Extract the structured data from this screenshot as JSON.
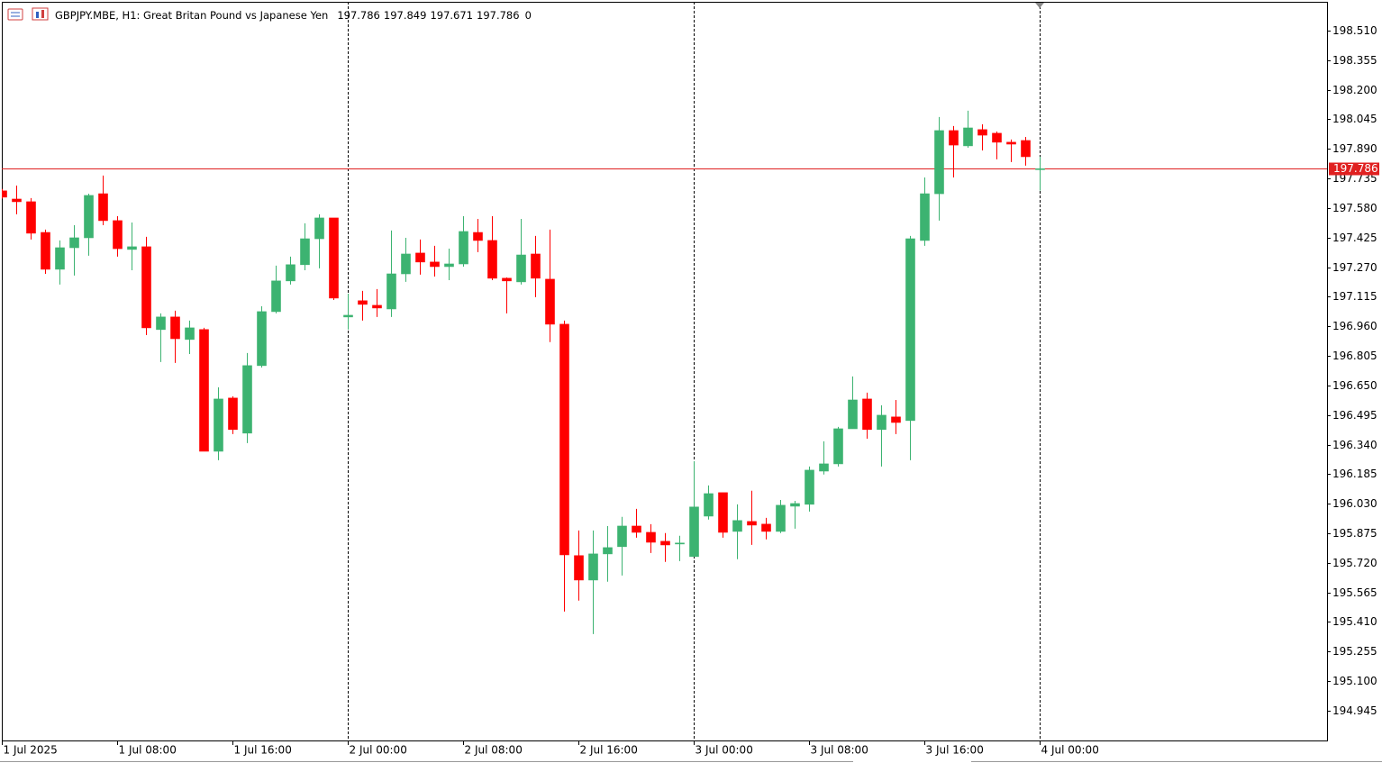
{
  "chart_data": {
    "type": "candlestick",
    "title": "GBPJPY.MBE, H1:  Great Britan Pound vs Japanese Yen",
    "last_volume": 0,
    "categories": [
      "1 Jul 2025",
      null,
      null,
      null,
      null,
      null,
      null,
      null,
      "1 Jul 08:00",
      null,
      null,
      null,
      null,
      null,
      null,
      null,
      "1 Jul 16:00",
      null,
      null,
      null,
      null,
      null,
      null,
      null,
      "2 Jul 00:00",
      null,
      null,
      null,
      null,
      null,
      null,
      null,
      "2 Jul 08:00",
      null,
      null,
      null,
      null,
      null,
      null,
      null,
      "2 Jul 16:00",
      null,
      null,
      null,
      null,
      null,
      null,
      null,
      "3 Jul 00:00",
      null,
      null,
      null,
      null,
      null,
      null,
      null,
      "3 Jul 08:00",
      null,
      null,
      null,
      null,
      null,
      null,
      null,
      "3 Jul 16:00",
      null,
      null,
      null,
      null,
      null,
      null,
      null,
      "4 Jul 00:00"
    ],
    "open": [
      197.67,
      197.627,
      197.613,
      197.452,
      197.259,
      197.372,
      197.424,
      197.655,
      197.514,
      197.363,
      197.377,
      196.943,
      197.009,
      196.891,
      196.943,
      196.305,
      196.584,
      196.4,
      196.754,
      197.037,
      197.198,
      197.283,
      197.419,
      197.528,
      197.009,
      197.094,
      197.07,
      197.051,
      197.235,
      197.344,
      197.297,
      197.273,
      197.287,
      197.452,
      197.41,
      197.212,
      197.193,
      197.339,
      197.207,
      196.971,
      195.758,
      195.63,
      195.767,
      195.805,
      195.913,
      195.88,
      195.833,
      195.819,
      195.753,
      195.965,
      196.088,
      195.885,
      195.937,
      195.923,
      195.885,
      196.017,
      196.027,
      196.201,
      196.239,
      196.423,
      196.579,
      196.419,
      196.485,
      196.466,
      197.41,
      197.655,
      197.986,
      197.906,
      197.991,
      197.972,
      197.925,
      197.934,
      197.786
    ],
    "high": [
      197.68,
      197.698,
      197.632,
      197.467,
      197.41,
      197.49,
      197.655,
      197.75,
      197.537,
      197.504,
      197.429,
      197.028,
      197.042,
      196.99,
      196.952,
      196.64,
      196.593,
      196.82,
      197.065,
      197.278,
      197.325,
      197.5,
      197.547,
      197.528,
      197.131,
      197.146,
      197.155,
      197.462,
      197.424,
      197.415,
      197.382,
      197.367,
      197.537,
      197.523,
      197.537,
      197.216,
      197.523,
      197.434,
      197.467,
      196.99,
      195.89,
      195.89,
      195.913,
      195.961,
      196.003,
      195.923,
      195.876,
      195.862,
      196.253,
      196.126,
      196.088,
      196.027,
      196.098,
      195.956,
      196.05,
      196.045,
      196.225,
      196.357,
      196.433,
      196.697,
      196.612,
      196.546,
      196.574,
      197.434,
      197.74,
      198.057,
      198.01,
      198.09,
      198.019,
      197.981,
      197.939,
      197.953,
      197.849
    ],
    "low": [
      197.63,
      197.547,
      197.415,
      197.235,
      197.179,
      197.226,
      197.33,
      197.49,
      197.325,
      197.254,
      196.914,
      196.773,
      196.768,
      196.815,
      196.305,
      196.258,
      196.395,
      196.348,
      196.744,
      197.028,
      197.179,
      197.254,
      197.264,
      197.098,
      196.943,
      196.99,
      197.009,
      197.009,
      197.193,
      197.231,
      197.221,
      197.202,
      197.273,
      197.349,
      197.202,
      197.028,
      197.179,
      197.113,
      196.877,
      195.465,
      195.522,
      195.347,
      195.621,
      195.654,
      195.852,
      195.772,
      195.725,
      195.729,
      195.753,
      195.947,
      195.852,
      195.739,
      195.814,
      195.843,
      195.876,
      195.899,
      195.989,
      196.183,
      196.225,
      196.423,
      196.371,
      196.225,
      196.395,
      196.258,
      197.382,
      197.514,
      197.74,
      197.896,
      197.882,
      197.835,
      197.821,
      197.802,
      197.671
    ],
    "close": [
      197.637,
      197.613,
      197.448,
      197.259,
      197.372,
      197.424,
      197.646,
      197.514,
      197.367,
      197.377,
      196.952,
      197.009,
      196.895,
      196.952,
      196.305,
      196.579,
      196.419,
      196.754,
      197.037,
      197.198,
      197.283,
      197.419,
      197.528,
      197.108,
      197.018,
      197.075,
      197.056,
      197.235,
      197.339,
      197.297,
      197.273,
      197.287,
      197.457,
      197.41,
      197.212,
      197.198,
      197.334,
      197.212,
      196.971,
      195.762,
      195.63,
      195.767,
      195.8,
      195.913,
      195.88,
      195.828,
      195.814,
      195.824,
      196.013,
      196.083,
      195.88,
      195.942,
      195.918,
      195.885,
      196.022,
      196.031,
      196.206,
      196.239,
      196.423,
      196.574,
      196.419,
      196.494,
      196.456,
      197.419,
      197.655,
      197.986,
      197.91,
      198.0,
      197.962,
      197.925,
      197.915,
      197.849,
      197.786
    ],
    "up_color": "#3cb371",
    "down_color": "#ff0000",
    "price_line_color": "#e02020",
    "ylim": [
      194.789,
      198.661
    ],
    "yticks": [
      {
        "value": 198.51,
        "label": "198.510"
      },
      {
        "value": 198.355,
        "label": "198.355"
      },
      {
        "value": 198.2,
        "label": "198.200"
      },
      {
        "value": 198.045,
        "label": "198.045"
      },
      {
        "value": 197.89,
        "label": "197.890"
      },
      {
        "value": 197.735,
        "label": "197.735"
      },
      {
        "value": 197.58,
        "label": "197.580"
      },
      {
        "value": 197.425,
        "label": "197.425"
      },
      {
        "value": 197.27,
        "label": "197.270"
      },
      {
        "value": 197.115,
        "label": "197.115"
      },
      {
        "value": 196.96,
        "label": "196.960"
      },
      {
        "value": 196.805,
        "label": "196.805"
      },
      {
        "value": 196.65,
        "label": "196.650"
      },
      {
        "value": 196.495,
        "label": "196.495"
      },
      {
        "value": 196.34,
        "label": "196.340"
      },
      {
        "value": 196.185,
        "label": "196.185"
      },
      {
        "value": 196.03,
        "label": "196.030"
      },
      {
        "value": 195.875,
        "label": "195.875"
      },
      {
        "value": 195.72,
        "label": "195.720"
      },
      {
        "value": 195.565,
        "label": "195.565"
      },
      {
        "value": 195.41,
        "label": "195.410"
      },
      {
        "value": 195.255,
        "label": "195.255"
      },
      {
        "value": 195.1,
        "label": "195.100"
      },
      {
        "value": 194.945,
        "label": "194.945"
      }
    ]
  }
}
